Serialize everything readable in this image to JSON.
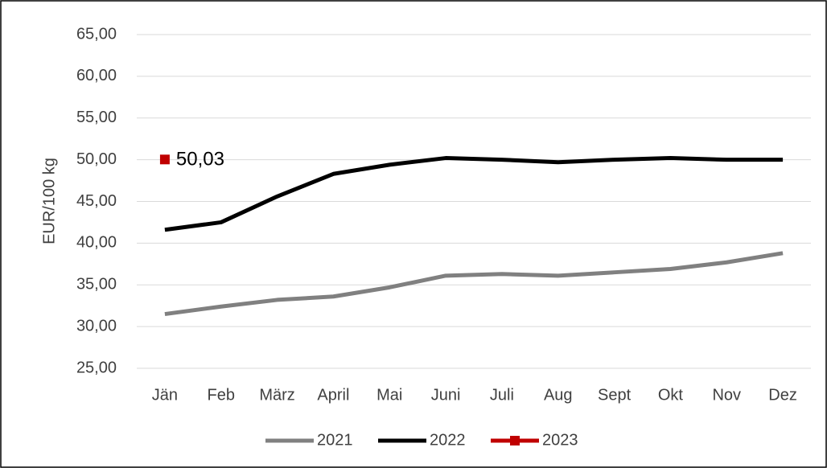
{
  "chart_data": {
    "type": "line",
    "ylabel": "EUR/100 kg",
    "categories": [
      "Jän",
      "Feb",
      "März",
      "April",
      "Mai",
      "Juni",
      "Juli",
      "Aug",
      "Sept",
      "Okt",
      "Nov",
      "Dez"
    ],
    "series": [
      {
        "name": "2021",
        "color": "#808080",
        "values": [
          31.5,
          32.4,
          33.2,
          33.6,
          34.7,
          36.1,
          36.3,
          36.1,
          36.5,
          36.9,
          37.7,
          38.8
        ]
      },
      {
        "name": "2022",
        "color": "#000000",
        "values": [
          41.6,
          42.5,
          45.6,
          48.3,
          49.4,
          50.2,
          50.0,
          49.7,
          50.0,
          50.2,
          50.0,
          50.0
        ]
      },
      {
        "name": "2023",
        "color": "#c00000",
        "marker": "square",
        "values": [
          50.03,
          null,
          null,
          null,
          null,
          null,
          null,
          null,
          null,
          null,
          null,
          null
        ],
        "value_labels": [
          "50,03",
          null,
          null,
          null,
          null,
          null,
          null,
          null,
          null,
          null,
          null,
          null
        ]
      }
    ],
    "ylim": [
      25,
      65
    ],
    "yticks": [
      {
        "value": 25,
        "label": "25,00"
      },
      {
        "value": 30,
        "label": "30,00"
      },
      {
        "value": 35,
        "label": "35,00"
      },
      {
        "value": 40,
        "label": "40,00"
      },
      {
        "value": 45,
        "label": "45,00"
      },
      {
        "value": 50,
        "label": "50,00"
      },
      {
        "value": 55,
        "label": "55,00"
      },
      {
        "value": 60,
        "label": "60,00"
      },
      {
        "value": 65,
        "label": "65,00"
      }
    ],
    "grid": true,
    "legend": "bottom"
  }
}
